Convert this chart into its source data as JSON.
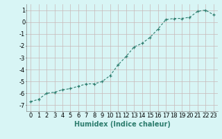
{
  "x": [
    0,
    1,
    2,
    3,
    4,
    5,
    6,
    7,
    8,
    9,
    10,
    11,
    12,
    13,
    14,
    15,
    16,
    17,
    18,
    19,
    20,
    21,
    22,
    23
  ],
  "y": [
    -6.7,
    -6.5,
    -6.0,
    -5.9,
    -5.7,
    -5.6,
    -5.4,
    -5.2,
    -5.2,
    -5.0,
    -4.5,
    -3.6,
    -2.9,
    -2.1,
    -1.8,
    -1.3,
    -0.6,
    0.2,
    0.3,
    0.3,
    0.4,
    0.9,
    1.0,
    0.6
  ],
  "line_color": "#2d7d6e",
  "marker": "+",
  "marker_size": 3,
  "line_width": 0.8,
  "bg_color": "#d8f5f5",
  "grid_color": "#c8b8b8",
  "xlabel": "Humidex (Indice chaleur)",
  "xlabel_fontsize": 7,
  "tick_fontsize": 6,
  "xlim": [
    -0.5,
    23.5
  ],
  "ylim": [
    -7.5,
    1.5
  ],
  "yticks": [
    -7,
    -6,
    -5,
    -4,
    -3,
    -2,
    -1,
    0,
    1
  ],
  "xticks": [
    0,
    1,
    2,
    3,
    4,
    5,
    6,
    7,
    8,
    9,
    10,
    11,
    12,
    13,
    14,
    15,
    16,
    17,
    18,
    19,
    20,
    21,
    22,
    23
  ]
}
